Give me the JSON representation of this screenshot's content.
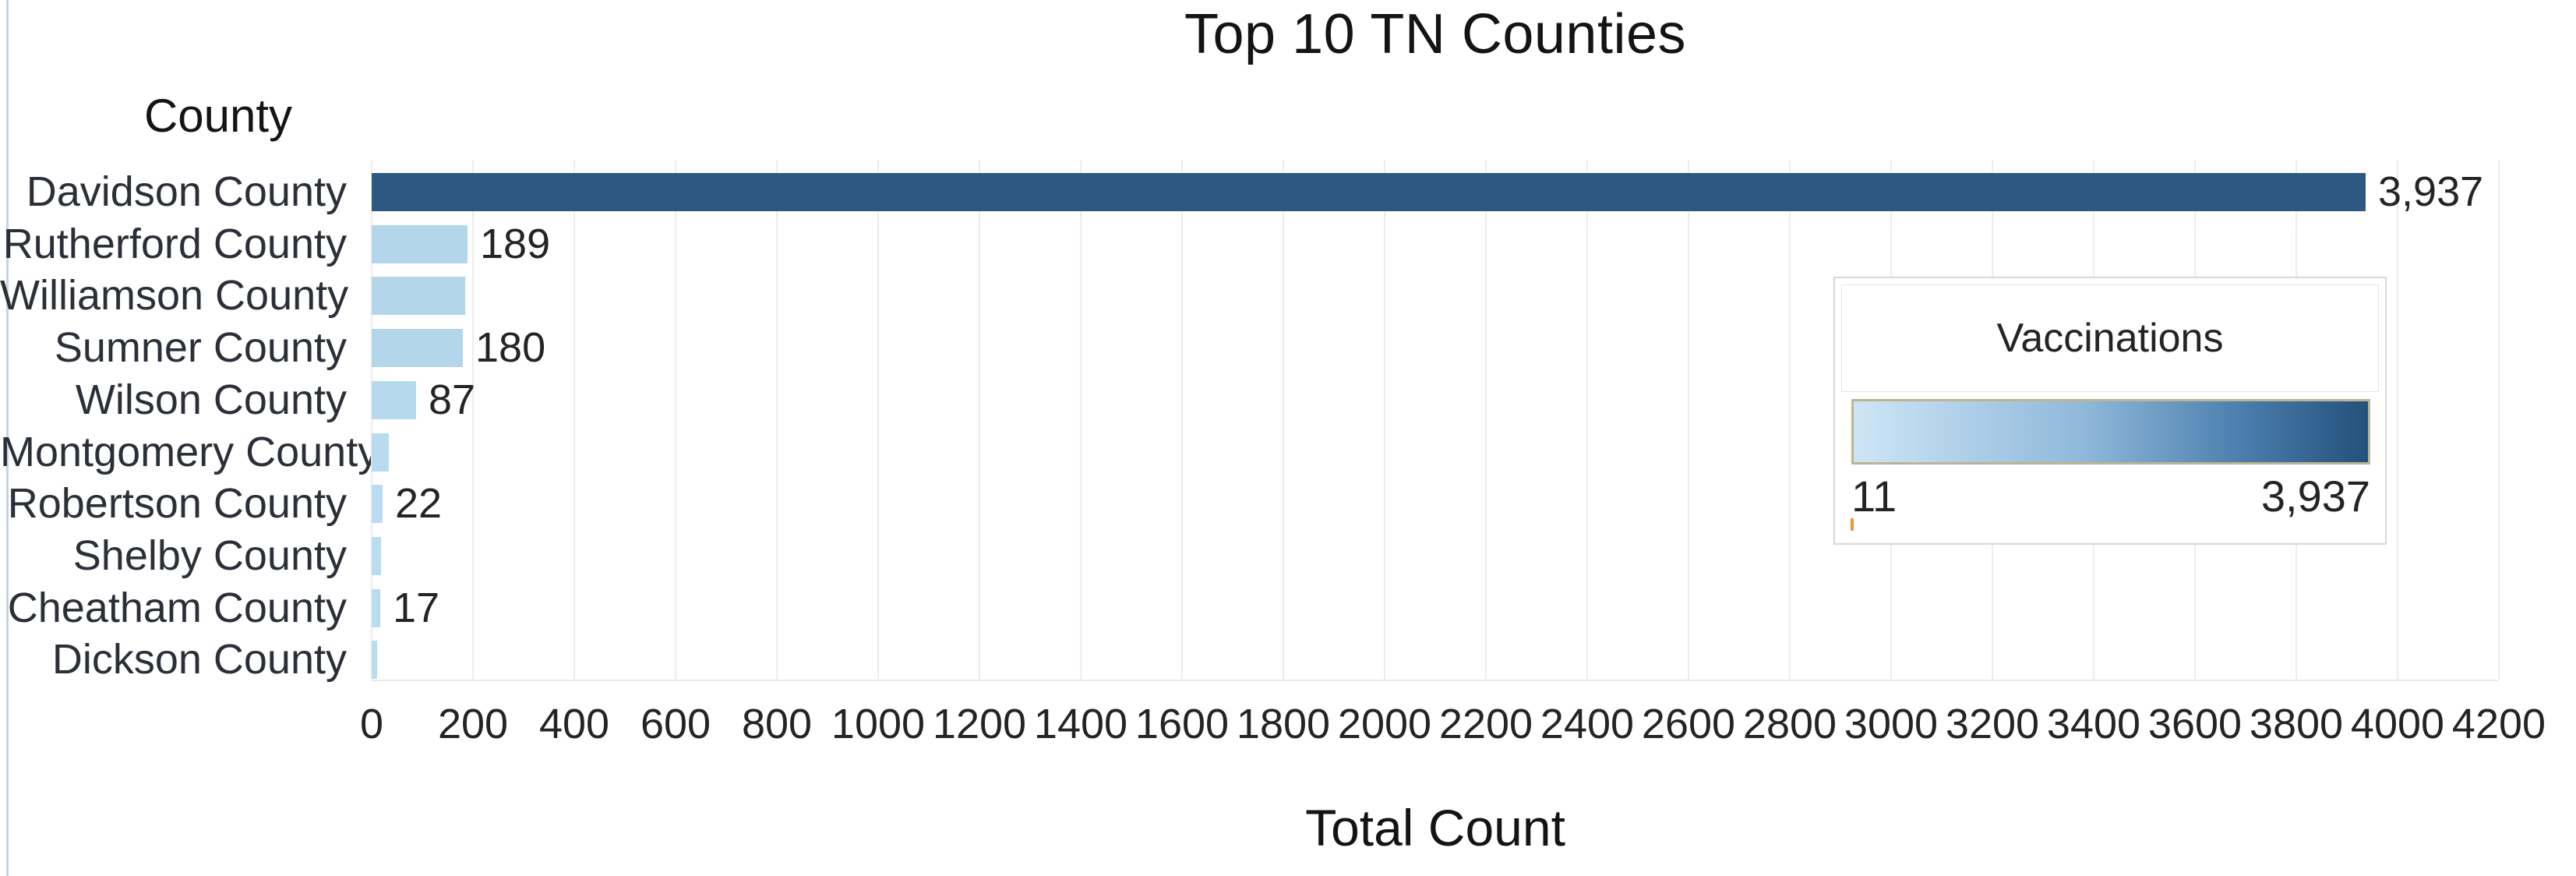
{
  "page": {
    "title": "Top 10 TN Counties",
    "x_axis_title": "Total Count",
    "y_axis_title": "County"
  },
  "legend": {
    "title": "Vaccinations",
    "min_label": "11",
    "max_label": "3,937"
  },
  "colors": {
    "bar_color_min": "#b9dcf0",
    "bar_color_max": "#2d5881",
    "gridline": "#ededed",
    "legend_gradient_start": "#cde5f6",
    "legend_gradient_end": "#24507c",
    "legend_gradient_border": "#bdb592",
    "legend_min_tick": "#e8973d",
    "text": "#252423"
  },
  "chart_data": {
    "type": "bar",
    "orientation": "horizontal",
    "title": "Top 10 TN Counties",
    "xlabel": "Total Count",
    "ylabel": "County",
    "xlim": [
      0,
      4200
    ],
    "x_tick_step": 200,
    "x_ticks": [
      0,
      200,
      400,
      600,
      800,
      1000,
      1200,
      1400,
      1600,
      1800,
      2000,
      2200,
      2400,
      2600,
      2800,
      3000,
      3200,
      3400,
      3600,
      3800,
      4000,
      4200
    ],
    "grid": "vertical",
    "legend_position": "overlay-right",
    "color_scale": {
      "name": "Vaccinations",
      "min": 11,
      "max": 3937
    },
    "categories": [
      "Davidson County",
      "Rutherford County",
      "Williamson County",
      "Sumner County",
      "Wilson County",
      "Montgomery County",
      "Robertson County",
      "Shelby County",
      "Cheatham County",
      "Dickson County"
    ],
    "values": [
      3937,
      189,
      185,
      180,
      87,
      34,
      22,
      18,
      17,
      11
    ],
    "data_labels": [
      "3,937",
      "189",
      "",
      "180",
      "87",
      "",
      "22",
      "",
      "17",
      ""
    ]
  }
}
